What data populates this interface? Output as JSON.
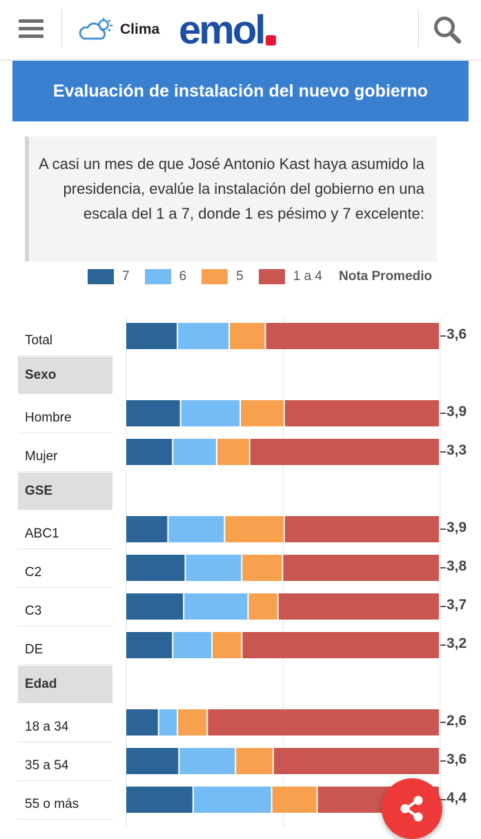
{
  "header": {
    "clima_label": "Clima",
    "logo": "emol"
  },
  "title": "Evaluación de instalación del nuevo gobierno",
  "question": "A casi un mes de que José Antonio Kast haya asumido la presidencia, evalúe la instalación del gobierno en una escala del 1 a 7, donde 1 es pésimo y 7 excelente:",
  "colors": {
    "header_band": "#3a80d0",
    "logo_blue": "#1c4fa3",
    "logo_red": "#e8173a",
    "share": "#f03a3a"
  },
  "chart_data": {
    "type": "bar",
    "orientation": "horizontal",
    "stacked": true,
    "xlim": [
      0,
      100
    ],
    "legend": [
      {
        "name": "7",
        "color": "#2b6496"
      },
      {
        "name": "6",
        "color": "#75bcf4"
      },
      {
        "name": "5",
        "color": "#f7a04e"
      },
      {
        "name": "1 a 4",
        "color": "#c95650"
      }
    ],
    "legend_note": "Nota Promedio",
    "rows": [
      {
        "kind": "row",
        "label": "Total",
        "values": [
          16.5,
          16.5,
          11.5,
          55.5
        ],
        "avg": "3,6"
      },
      {
        "kind": "group",
        "label": "Sexo"
      },
      {
        "kind": "row",
        "label": "Hombre",
        "values": [
          17.5,
          19,
          14,
          49.5
        ],
        "avg": "3,9"
      },
      {
        "kind": "row",
        "label": "Mujer",
        "values": [
          15,
          14,
          10.5,
          60.5
        ],
        "avg": "3,3"
      },
      {
        "kind": "group",
        "label": "GSE"
      },
      {
        "kind": "row",
        "label": "ABC1",
        "values": [
          13.5,
          18,
          19,
          49.5
        ],
        "avg": "3,9"
      },
      {
        "kind": "row",
        "label": "C2",
        "values": [
          19,
          18,
          13,
          50
        ],
        "avg": "3,8"
      },
      {
        "kind": "row",
        "label": "C3",
        "values": [
          18.5,
          20.5,
          9.5,
          51.5
        ],
        "avg": "3,7"
      },
      {
        "kind": "row",
        "label": "DE",
        "values": [
          15,
          12.5,
          9.5,
          63
        ],
        "avg": "3,2"
      },
      {
        "kind": "group",
        "label": "Edad"
      },
      {
        "kind": "row",
        "label": "18 a 34",
        "values": [
          10.5,
          6,
          9.5,
          74
        ],
        "avg": "2,6"
      },
      {
        "kind": "row",
        "label": "35 a 54",
        "values": [
          17,
          18,
          12,
          53
        ],
        "avg": "3,6"
      },
      {
        "kind": "row",
        "label": "55 o más",
        "values": [
          21.5,
          25,
          14.5,
          39
        ],
        "avg": "4,4"
      }
    ]
  },
  "share_icon": "share-icon"
}
